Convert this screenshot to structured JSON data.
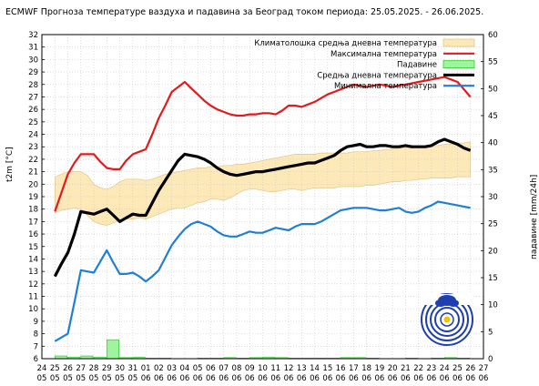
{
  "chart_data": {
    "type": "line",
    "title": "ECMWF Прогноза температуре ваздуха и падавина за Београд током периода: 25.05.2025. - 26.06.2025.",
    "ylabel": "t2m [°C]",
    "y2label": "падавине [mm/24h]",
    "ylim": [
      6,
      32
    ],
    "y2lim": [
      0,
      60
    ],
    "yticks": [
      6,
      7,
      8,
      9,
      10,
      11,
      12,
      13,
      14,
      15,
      16,
      17,
      18,
      19,
      20,
      21,
      22,
      23,
      24,
      25,
      26,
      27,
      28,
      29,
      30,
      31,
      32
    ],
    "y2ticks": [
      0,
      5,
      10,
      15,
      20,
      25,
      30,
      35,
      40,
      45,
      50,
      55,
      60
    ],
    "xtick_top": [
      "24",
      "25",
      "26",
      "27",
      "28",
      "29",
      "30",
      "31",
      "01",
      "02",
      "03",
      "04",
      "05",
      "06",
      "07",
      "08",
      "09",
      "10",
      "11",
      "12",
      "13",
      "14",
      "15",
      "16",
      "17",
      "18",
      "19",
      "20",
      "21",
      "22",
      "23",
      "24",
      "25",
      "26",
      "27"
    ],
    "xtick_bottom": [
      "05",
      "05",
      "05",
      "05",
      "05",
      "05",
      "05",
      "05",
      "06",
      "06",
      "06",
      "06",
      "06",
      "06",
      "06",
      "06",
      "06",
      "06",
      "06",
      "06",
      "06",
      "06",
      "06",
      "06",
      "06",
      "06",
      "06",
      "06",
      "06",
      "06",
      "06",
      "06",
      "06",
      "06",
      "06"
    ],
    "x": [
      25,
      25.5,
      26,
      26.5,
      27,
      27.5,
      28,
      28.5,
      29,
      29.5,
      30,
      30.5,
      31,
      31.5,
      32,
      32.5,
      33,
      33.5,
      34,
      34.5,
      35,
      35.5,
      36,
      36.5,
      37,
      37.5,
      38,
      38.5,
      39,
      39.5,
      40,
      40.5,
      41,
      41.5,
      42,
      42.5,
      43,
      43.5,
      44,
      44.5,
      45,
      45.5,
      46,
      46.5,
      47,
      47.5,
      48,
      48.5,
      49,
      49.5,
      50,
      50.5,
      51,
      51.5,
      52,
      52.5,
      53,
      53.5,
      54,
      54.5,
      55,
      55.5,
      56,
      56.5,
      57
    ],
    "climatology_band": {
      "name": "Климатолошка средња дневна температура",
      "color": "#fde9b8",
      "lower": [
        17.7,
        17.9,
        18.0,
        18.1,
        18.0,
        17.5,
        17.0,
        16.8,
        16.7,
        16.9,
        17.1,
        17.2,
        17.2,
        17.3,
        17.2,
        17.4,
        17.6,
        17.8,
        18.0,
        18.1,
        18.1,
        18.3,
        18.5,
        18.6,
        18.8,
        18.8,
        18.7,
        18.9,
        19.2,
        19.5,
        19.6,
        19.6,
        19.5,
        19.4,
        19.4,
        19.5,
        19.6,
        19.6,
        19.5,
        19.6,
        19.7,
        19.7,
        19.7,
        19.7,
        19.8,
        19.8,
        19.8,
        19.8,
        19.9,
        19.9,
        20.0,
        20.1,
        20.2,
        20.2,
        20.3,
        20.3,
        20.4,
        20.4,
        20.5,
        20.5,
        20.5,
        20.5,
        20.6,
        20.6,
        20.6
      ],
      "upper": [
        20.6,
        20.8,
        21.0,
        21.0,
        21.0,
        20.7,
        20.0,
        19.7,
        19.6,
        19.8,
        20.2,
        20.4,
        20.4,
        20.4,
        20.3,
        20.4,
        20.6,
        20.8,
        20.9,
        21.0,
        21.1,
        21.2,
        21.3,
        21.3,
        21.4,
        21.4,
        21.5,
        21.5,
        21.6,
        21.6,
        21.7,
        21.8,
        21.9,
        22.0,
        22.1,
        22.2,
        22.3,
        22.4,
        22.4,
        22.4,
        22.4,
        22.5,
        22.5,
        22.5,
        22.5,
        22.5,
        22.6,
        22.6,
        22.6,
        22.7,
        22.7,
        22.8,
        22.8,
        22.9,
        22.9,
        22.9,
        23.0,
        23.0,
        23.1,
        23.1,
        23.2,
        23.2,
        23.3,
        23.3,
        23.4
      ]
    },
    "series": [
      {
        "name": "Максимална температура",
        "color": "#e31a1c",
        "values": [
          17.8,
          19.3,
          20.8,
          21.7,
          22.4,
          22.4,
          22.4,
          21.8,
          21.3,
          21.2,
          21.2,
          21.9,
          22.4,
          22.6,
          22.8,
          24.0,
          25.3,
          26.3,
          27.4,
          27.8,
          28.2,
          27.7,
          27.2,
          26.7,
          26.3,
          26.0,
          25.8,
          25.6,
          25.5,
          25.5,
          25.6,
          25.6,
          25.7,
          25.7,
          25.6,
          25.9,
          26.3,
          26.3,
          26.2,
          26.4,
          26.6,
          26.9,
          27.2,
          27.4,
          27.6,
          27.8,
          28.0,
          27.9,
          27.8,
          27.9,
          28.0,
          27.9,
          27.8,
          27.9,
          28.0,
          28.1,
          28.2,
          28.3,
          28.4,
          28.5,
          28.6,
          28.4,
          28.2,
          27.6,
          27.0
        ]
      },
      {
        "name": "Средња дневна температура",
        "color": "#000000",
        "values": [
          12.6,
          13.6,
          14.5,
          16.0,
          17.8,
          17.7,
          17.6,
          17.8,
          18.0,
          17.5,
          17.0,
          17.3,
          17.6,
          17.5,
          17.5,
          18.5,
          19.5,
          20.3,
          21.1,
          21.9,
          22.4,
          22.3,
          22.2,
          22.0,
          21.7,
          21.3,
          21.0,
          20.8,
          20.7,
          20.8,
          20.9,
          21.0,
          21.0,
          21.1,
          21.2,
          21.3,
          21.4,
          21.5,
          21.6,
          21.7,
          21.7,
          21.9,
          22.1,
          22.3,
          22.7,
          23.0,
          23.1,
          23.2,
          23.0,
          23.0,
          23.1,
          23.1,
          23.0,
          23.0,
          23.1,
          23.0,
          23.0,
          23.0,
          23.1,
          23.4,
          23.6,
          23.4,
          23.2,
          22.9,
          22.7
        ]
      },
      {
        "name": "Минимална температура",
        "color": "#1f7fd6",
        "values": [
          7.4,
          7.7,
          8.0,
          10.5,
          13.1,
          13.0,
          12.9,
          13.8,
          14.7,
          13.7,
          12.8,
          12.8,
          12.9,
          12.6,
          12.2,
          12.6,
          13.1,
          14.1,
          15.1,
          15.8,
          16.4,
          16.8,
          17.0,
          16.8,
          16.6,
          16.2,
          15.9,
          15.8,
          15.8,
          16.0,
          16.2,
          16.1,
          16.1,
          16.3,
          16.5,
          16.4,
          16.3,
          16.6,
          16.8,
          16.8,
          16.8,
          17.0,
          17.3,
          17.6,
          17.9,
          18.0,
          18.1,
          18.1,
          18.1,
          18.0,
          17.9,
          17.9,
          18.0,
          18.1,
          17.8,
          17.7,
          17.8,
          18.1,
          18.3,
          18.6,
          18.5,
          18.4,
          18.3,
          18.2,
          18.1
        ]
      }
    ],
    "precipitation": {
      "name": "Падавине",
      "color": "#9ef59e",
      "axis": "right",
      "days": [
        25,
        26,
        27,
        28,
        29,
        30,
        31,
        32,
        33,
        34,
        35,
        36,
        37,
        38,
        39,
        40,
        41,
        42,
        43,
        44,
        45,
        46,
        47,
        48,
        49,
        50,
        51,
        52,
        53,
        54,
        55,
        56
      ],
      "values": [
        0.5,
        0.3,
        0.5,
        0.3,
        3.5,
        0.2,
        0.3,
        0.1,
        0.1,
        0.0,
        0.0,
        0.1,
        0.1,
        0.2,
        0.1,
        0.2,
        0.3,
        0.2,
        0.1,
        0.1,
        0.1,
        0.1,
        0.2,
        0.2,
        0.1,
        0.0,
        0.0,
        0.1,
        0.0,
        0.1,
        0.2,
        0.1
      ]
    },
    "legend_position": "top-right",
    "grid": true
  }
}
